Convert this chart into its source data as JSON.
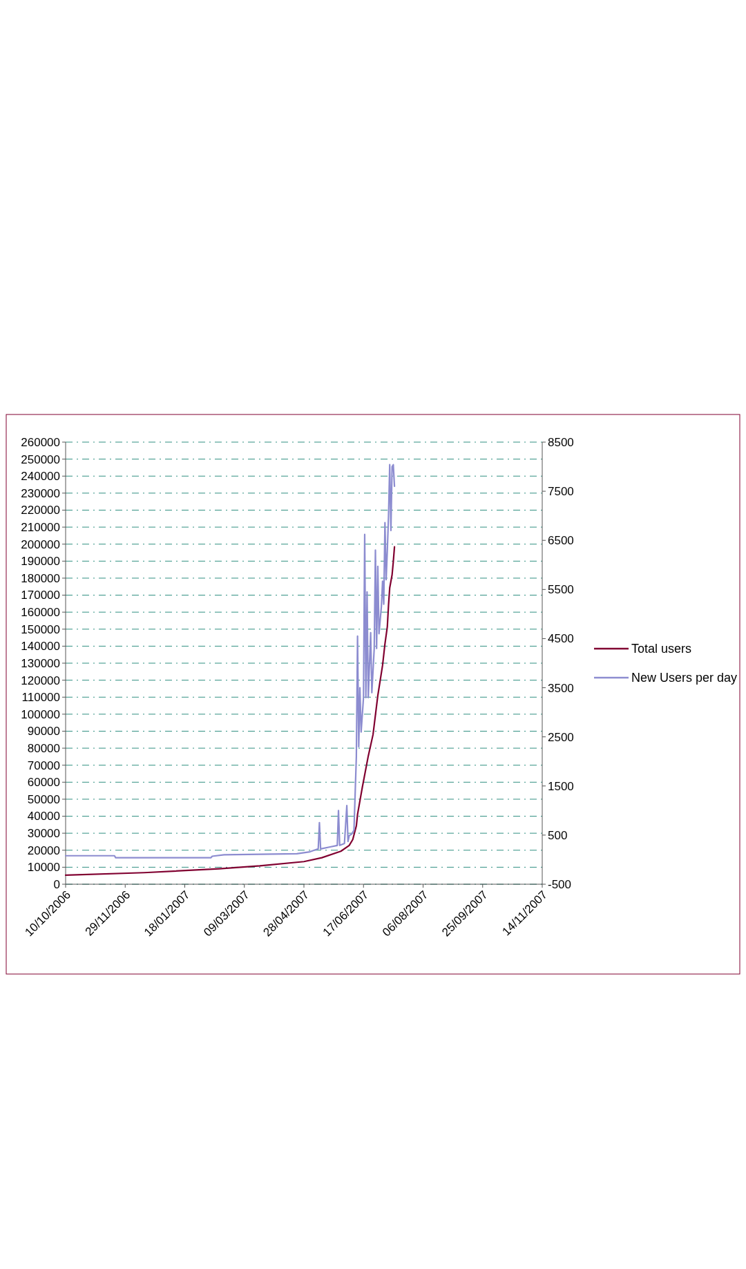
{
  "chart_data": {
    "type": "line",
    "xlim": [
      "2006-10-10",
      "2007-11-14"
    ],
    "xticks": [
      {
        "value": "2006-10-10",
        "label": "10/10/2006"
      },
      {
        "value": "2006-11-29",
        "label": "29/11/2006"
      },
      {
        "value": "2007-01-18",
        "label": "18/01/2007"
      },
      {
        "value": "2007-03-09",
        "label": "09/03/2007"
      },
      {
        "value": "2007-04-28",
        "label": "28/04/2007"
      },
      {
        "value": "2007-06-17",
        "label": "17/06/2007"
      },
      {
        "value": "2007-08-06",
        "label": "06/08/2007"
      },
      {
        "value": "2007-09-25",
        "label": "25/09/2007"
      },
      {
        "value": "2007-11-14",
        "label": "14/11/2007"
      }
    ],
    "ylim": [
      0,
      260000
    ],
    "yticks": [
      0,
      10000,
      20000,
      30000,
      40000,
      50000,
      60000,
      70000,
      80000,
      90000,
      100000,
      110000,
      120000,
      130000,
      140000,
      150000,
      160000,
      170000,
      180000,
      190000,
      200000,
      210000,
      220000,
      230000,
      240000,
      250000,
      260000
    ],
    "y2lim": [
      -500,
      8500
    ],
    "y2ticks": [
      -500,
      500,
      1500,
      2500,
      3500,
      4500,
      5500,
      6500,
      7500,
      8500
    ],
    "grid": "y",
    "legend": "right",
    "series": [
      {
        "name": "Total users",
        "color": "#800030",
        "x": [
          "2006-10-10",
          "2006-12-15",
          "2007-02-16",
          "2007-03-22",
          "2007-04-28",
          "2007-05-13",
          "2007-05-29",
          "2007-06-05",
          "2007-06-08",
          "2007-06-11",
          "2007-06-12",
          "2007-06-16",
          "2007-06-21",
          "2007-06-25",
          "2007-06-29",
          "2007-07-03",
          "2007-07-05",
          "2007-07-07",
          "2007-07-08",
          "2007-07-09",
          "2007-07-11",
          "2007-07-12",
          "2007-07-13"
        ],
        "values": [
          5300,
          6800,
          9100,
          10800,
          13300,
          15600,
          19400,
          22800,
          26300,
          34300,
          41100,
          57000,
          75400,
          88000,
          110900,
          128700,
          141300,
          151500,
          164200,
          174300,
          182000,
          189600,
          198400
        ]
      },
      {
        "name": "New Users per day",
        "color": "#8c8cd0",
        "axis": "y2",
        "x": [
          "2006-10-10",
          "2006-11-20",
          "2006-11-21",
          "2007-02-09",
          "2007-02-10",
          "2007-02-20",
          "2007-04-22",
          "2007-05-03",
          "2007-05-10",
          "2007-05-11",
          "2007-05-12",
          "2007-05-20",
          "2007-05-26",
          "2007-05-27",
          "2007-05-28",
          "2007-06-01",
          "2007-06-03",
          "2007-06-04",
          "2007-06-05",
          "2007-06-07",
          "2007-06-09",
          "2007-06-11",
          "2007-06-12",
          "2007-06-13",
          "2007-06-14",
          "2007-06-15",
          "2007-06-17",
          "2007-06-18",
          "2007-06-19",
          "2007-06-20",
          "2007-06-21",
          "2007-06-23",
          "2007-06-24",
          "2007-06-26",
          "2007-06-27",
          "2007-06-28",
          "2007-06-29",
          "2007-06-30",
          "2007-07-02",
          "2007-07-03",
          "2007-07-04",
          "2007-07-05",
          "2007-07-06",
          "2007-07-07",
          "2007-07-08",
          "2007-07-09",
          "2007-07-10",
          "2007-07-11",
          "2007-07-12",
          "2007-07-13"
        ],
        "values": [
          80,
          80,
          40,
          40,
          70,
          100,
          120,
          160,
          220,
          755,
          220,
          260,
          290,
          1000,
          290,
          330,
          1100,
          370,
          490,
          520,
          600,
          2100,
          4550,
          2300,
          3500,
          2600,
          3300,
          6620,
          3300,
          5450,
          3300,
          4620,
          3400,
          4300,
          6300,
          4300,
          5970,
          4600,
          5150,
          5670,
          5200,
          6860,
          5700,
          6300,
          7000,
          8040,
          6700,
          8000,
          8040,
          7600
        ]
      }
    ]
  }
}
